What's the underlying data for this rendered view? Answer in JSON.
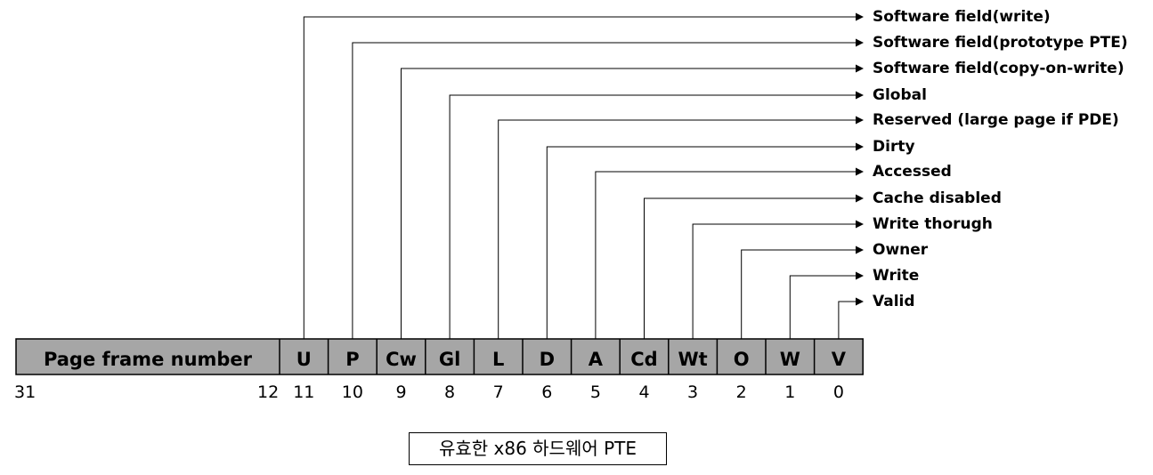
{
  "pfn_label": "Page frame number",
  "pfn_bits": {
    "high": "31",
    "low": "12"
  },
  "flags": [
    {
      "abbr": "U",
      "bit": "11",
      "desc": "Software field(write)"
    },
    {
      "abbr": "P",
      "bit": "10",
      "desc": "Software field(prototype PTE)"
    },
    {
      "abbr": "Cw",
      "bit": "9",
      "desc": "Software field(copy-on-write)"
    },
    {
      "abbr": "Gl",
      "bit": "8",
      "desc": "Global"
    },
    {
      "abbr": "L",
      "bit": "7",
      "desc": "Reserved (large page if PDE)"
    },
    {
      "abbr": "D",
      "bit": "6",
      "desc": "Dirty"
    },
    {
      "abbr": "A",
      "bit": "5",
      "desc": "Accessed"
    },
    {
      "abbr": "Cd",
      "bit": "4",
      "desc": "Cache disabled"
    },
    {
      "abbr": "Wt",
      "bit": "3",
      "desc": "Write thorugh"
    },
    {
      "abbr": "O",
      "bit": "2",
      "desc": "Owner"
    },
    {
      "abbr": "W",
      "bit": "1",
      "desc": "Write"
    },
    {
      "abbr": "V",
      "bit": "0",
      "desc": "Valid"
    }
  ],
  "caption": "유효한 x86 하드웨어 PTE",
  "colors": {
    "register_fill": "#a6a6a6",
    "line": "#000000"
  }
}
